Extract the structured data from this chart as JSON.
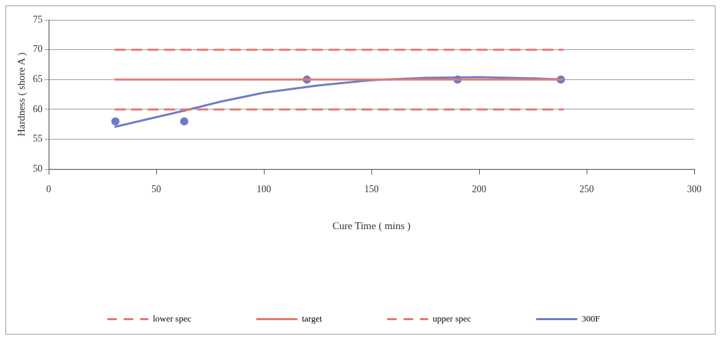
{
  "chart_data": {
    "type": "line",
    "xlabel": "Cure Time ( mins )",
    "ylabel": "Hardness ( shore A )",
    "xlim": [
      0,
      300
    ],
    "xticks": [
      0,
      50,
      100,
      150,
      200,
      250,
      300
    ],
    "ylim": [
      50,
      75
    ],
    "yticks": [
      50,
      55,
      60,
      65,
      70,
      75
    ],
    "grid": "y",
    "legend": "bottom",
    "series": [
      {
        "name": "lower spec",
        "color": "#e07b70",
        "line_style": "dashed",
        "marker": "none",
        "x": [
          31,
          239
        ],
        "values": [
          60,
          60
        ]
      },
      {
        "name": "target",
        "color": "#e07b70",
        "line_style": "solid",
        "marker": "none",
        "x": [
          31,
          239
        ],
        "values": [
          65,
          65
        ]
      },
      {
        "name": "upper spec",
        "color": "#e07b70",
        "line_style": "dashed",
        "marker": "none",
        "x": [
          31,
          239
        ],
        "values": [
          70,
          70
        ]
      },
      {
        "name": "300F",
        "color": "#6f7cc4",
        "line_style": "solid",
        "marker": "none",
        "x": [
          31,
          50,
          63,
          80,
          100,
          125,
          150,
          175,
          200,
          225,
          239
        ],
        "values": [
          57.1,
          58.7,
          59.8,
          61.3,
          62.8,
          64.0,
          64.9,
          65.3,
          65.4,
          65.2,
          65.0
        ]
      },
      {
        "type": "scatter",
        "color": "#6f7cc4",
        "marker": "circle",
        "x": [
          31,
          63,
          120,
          190,
          238
        ],
        "values": [
          58,
          58,
          65,
          65,
          65
        ]
      }
    ]
  }
}
